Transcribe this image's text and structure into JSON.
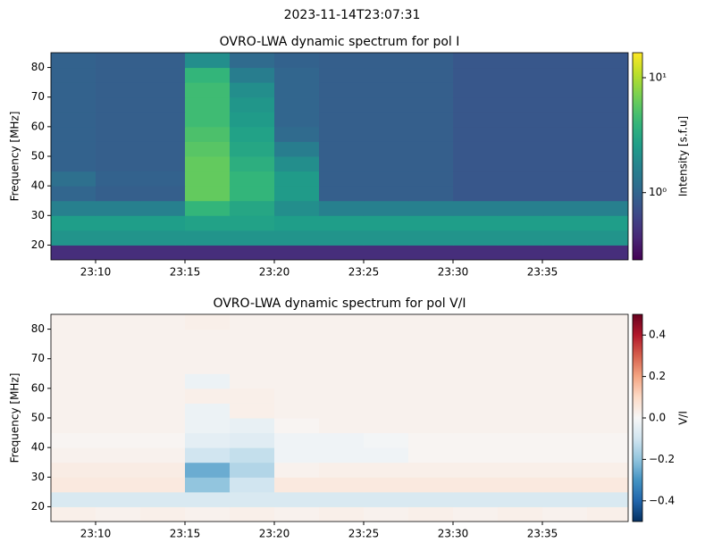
{
  "figure_title": "2023-11-14T23:07:31",
  "chart_data": [
    {
      "type": "heatmap",
      "title": "OVRO-LWA dynamic spectrum for pol I",
      "ylabel": "Frequency [MHz]",
      "colorbar_label": "Intensity [s.f.u]",
      "colormap": "viridis",
      "color_scale": "log",
      "clim": [
        0.26,
        16.5
      ],
      "cticks": [
        {
          "value": 1,
          "label": "10⁰"
        },
        {
          "value": 10,
          "label": "10¹"
        }
      ],
      "xlim": [
        "23:07:30",
        "23:39:48"
      ],
      "xticks": [
        "23:10",
        "23:15",
        "23:20",
        "23:25",
        "23:30",
        "23:35"
      ],
      "ylim": [
        15,
        85
      ],
      "yticks": [
        20,
        30,
        40,
        50,
        60,
        70,
        80
      ],
      "x": [
        "23:08:45",
        "23:11:15",
        "23:13:45",
        "23:16:15",
        "23:18:45",
        "23:21:15",
        "23:23:45",
        "23:26:15",
        "23:28:45",
        "23:31:15",
        "23:33:45",
        "23:36:15",
        "23:38:45"
      ],
      "y": [
        17.5,
        22.5,
        27.5,
        32.5,
        37.5,
        42.5,
        47.5,
        52.5,
        57.5,
        62.5,
        67.5,
        72.5,
        77.5,
        82.5
      ],
      "z": [
        [
          0.45,
          0.45,
          0.45,
          0.45,
          0.45,
          0.45,
          0.45,
          0.45,
          0.45,
          0.45,
          0.45,
          0.45,
          0.45
        ],
        [
          2.2,
          2.2,
          2.2,
          2.2,
          2.2,
          2.2,
          2.2,
          2.2,
          2.2,
          2.2,
          2.2,
          2.2,
          2.2
        ],
        [
          2.6,
          2.6,
          2.6,
          2.8,
          2.8,
          2.6,
          2.6,
          2.6,
          2.6,
          2.6,
          2.6,
          2.6,
          2.6
        ],
        [
          1.6,
          1.6,
          1.6,
          4,
          3,
          2,
          1.6,
          1.6,
          1.6,
          1.6,
          1.6,
          1.6,
          1.6
        ],
        [
          1.0,
          0.9,
          0.9,
          6,
          4,
          2.5,
          0.9,
          0.9,
          0.9,
          0.8,
          0.8,
          0.8,
          0.8
        ],
        [
          1.2,
          0.95,
          0.95,
          6,
          4,
          2.5,
          0.9,
          0.9,
          0.9,
          0.8,
          0.8,
          0.8,
          0.8
        ],
        [
          0.95,
          0.9,
          0.9,
          6,
          3.5,
          2,
          0.9,
          0.9,
          0.9,
          0.8,
          0.8,
          0.8,
          0.8
        ],
        [
          0.95,
          0.9,
          0.9,
          5.5,
          3,
          1.5,
          0.9,
          0.9,
          0.9,
          0.8,
          0.8,
          0.8,
          0.8
        ],
        [
          0.95,
          0.9,
          0.9,
          5,
          2.8,
          1.1,
          0.9,
          0.9,
          0.9,
          0.8,
          0.8,
          0.8,
          0.8
        ],
        [
          0.95,
          0.9,
          0.9,
          4.5,
          2.5,
          1.0,
          0.9,
          0.9,
          0.9,
          0.8,
          0.8,
          0.8,
          0.8
        ],
        [
          0.95,
          0.9,
          0.9,
          4.5,
          2.3,
          1.0,
          0.9,
          0.9,
          0.9,
          0.8,
          0.8,
          0.8,
          0.8
        ],
        [
          0.95,
          0.9,
          0.9,
          4.5,
          2,
          1.0,
          0.9,
          0.9,
          0.9,
          0.8,
          0.8,
          0.8,
          0.8
        ],
        [
          0.95,
          0.9,
          0.9,
          4,
          1.5,
          1.0,
          0.9,
          0.9,
          0.9,
          0.8,
          0.8,
          0.8,
          0.8
        ],
        [
          0.95,
          0.9,
          0.9,
          2,
          1.1,
          0.95,
          0.9,
          0.9,
          0.9,
          0.8,
          0.8,
          0.8,
          0.8
        ]
      ]
    },
    {
      "type": "heatmap",
      "title": "OVRO-LWA dynamic spectrum for pol V/I",
      "ylabel": "Frequency [MHz]",
      "colorbar_label": "V/I",
      "colormap": "RdBu_r",
      "color_scale": "linear",
      "clim": [
        -0.5,
        0.5
      ],
      "cticks": [
        {
          "value": -0.4,
          "label": "−0.4"
        },
        {
          "value": -0.2,
          "label": "−0.2"
        },
        {
          "value": 0,
          "label": "0.0"
        },
        0.2,
        0.4
      ],
      "xlim": [
        "23:07:30",
        "23:39:48"
      ],
      "xticks": [
        "23:10",
        "23:15",
        "23:20",
        "23:25",
        "23:30",
        "23:35"
      ],
      "ylim": [
        15,
        85
      ],
      "yticks": [
        20,
        30,
        40,
        50,
        60,
        70,
        80
      ],
      "x": [
        "23:08:45",
        "23:11:15",
        "23:13:45",
        "23:16:15",
        "23:18:45",
        "23:21:15",
        "23:23:45",
        "23:26:15",
        "23:28:45",
        "23:31:15",
        "23:33:45",
        "23:36:15",
        "23:38:45"
      ],
      "y": [
        17.5,
        22.5,
        27.5,
        32.5,
        37.5,
        42.5,
        47.5,
        52.5,
        57.5,
        62.5,
        67.5,
        72.5,
        77.5,
        82.5
      ],
      "z": [
        [
          0.03,
          0.02,
          0.03,
          0.02,
          0.03,
          0.02,
          0.03,
          0.02,
          0.03,
          0.02,
          0.03,
          0.02,
          0.03
        ],
        [
          -0.08,
          -0.08,
          -0.08,
          -0.08,
          -0.08,
          -0.08,
          -0.08,
          -0.08,
          -0.08,
          -0.08,
          -0.08,
          -0.08,
          -0.08
        ],
        [
          0.05,
          0.05,
          0.05,
          -0.2,
          -0.1,
          0.05,
          0.05,
          0.05,
          0.05,
          0.05,
          0.05,
          0.05,
          0.05
        ],
        [
          0.04,
          0.04,
          0.04,
          -0.25,
          -0.15,
          0.02,
          0.03,
          0.03,
          0.03,
          0.03,
          0.03,
          0.03,
          0.03
        ],
        [
          0.02,
          0.02,
          0.02,
          -0.1,
          -0.12,
          -0.02,
          -0.02,
          -0.02,
          0.01,
          0.01,
          0.01,
          0.01,
          0.01
        ],
        [
          0.01,
          0.01,
          0.01,
          -0.05,
          -0.06,
          -0.02,
          -0.02,
          -0.01,
          0.01,
          0.01,
          0.01,
          0.01,
          0.01
        ],
        [
          0.02,
          0.02,
          0.02,
          -0.03,
          -0.04,
          0.01,
          0.02,
          0.02,
          0.02,
          0.02,
          0.02,
          0.02,
          0.02
        ],
        [
          0.02,
          0.02,
          0.02,
          -0.03,
          0.03,
          0.02,
          0.02,
          0.02,
          0.02,
          0.02,
          0.02,
          0.02,
          0.02
        ],
        [
          0.02,
          0.02,
          0.02,
          0.03,
          0.03,
          0.02,
          0.02,
          0.02,
          0.02,
          0.02,
          0.02,
          0.02,
          0.02
        ],
        [
          0.02,
          0.02,
          0.02,
          -0.03,
          0.02,
          0.02,
          0.02,
          0.02,
          0.02,
          0.02,
          0.02,
          0.02,
          0.02
        ],
        [
          0.02,
          0.02,
          0.02,
          0.02,
          0.02,
          0.02,
          0.02,
          0.02,
          0.02,
          0.02,
          0.02,
          0.02,
          0.02
        ],
        [
          0.02,
          0.02,
          0.02,
          0.02,
          0.02,
          0.02,
          0.02,
          0.02,
          0.02,
          0.02,
          0.02,
          0.02,
          0.02
        ],
        [
          0.02,
          0.02,
          0.02,
          0.02,
          0.02,
          0.02,
          0.02,
          0.02,
          0.02,
          0.02,
          0.02,
          0.02,
          0.02
        ],
        [
          0.02,
          0.02,
          0.02,
          0.03,
          0.02,
          0.02,
          0.02,
          0.02,
          0.02,
          0.02,
          0.02,
          0.02,
          0.02
        ]
      ]
    }
  ]
}
